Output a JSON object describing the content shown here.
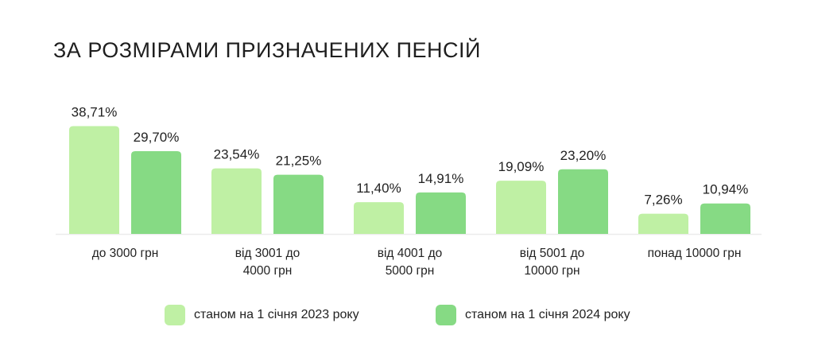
{
  "chart_data": {
    "type": "bar",
    "title": "ЗА РОЗМІРАМИ ПРИЗНАЧЕНИХ ПЕНСІЙ",
    "categories": [
      [
        "до 3000 грн"
      ],
      [
        "від 3001 до",
        "4000 грн"
      ],
      [
        "від 4001 до",
        "5000 грн"
      ],
      [
        "від 5001 до",
        "10000 грн"
      ],
      [
        "понад 10000 грн"
      ]
    ],
    "series": [
      {
        "name": "станом на 1 січня 2023 року",
        "color": "#bff0a4",
        "values": [
          38.71,
          23.54,
          11.4,
          19.09,
          7.26
        ],
        "labels": [
          "38,71%",
          "23,54%",
          "11,40%",
          "19,09%",
          "7,26%"
        ]
      },
      {
        "name": "станом на 1 січня 2024 року",
        "color": "#86da84",
        "values": [
          29.7,
          21.25,
          14.91,
          23.2,
          10.94
        ],
        "labels": [
          "29,70%",
          "21,25%",
          "14,91%",
          "23,20%",
          "10,94%"
        ]
      }
    ],
    "ylim": [
      0,
      40
    ],
    "grid": false,
    "legend": "bottom"
  }
}
